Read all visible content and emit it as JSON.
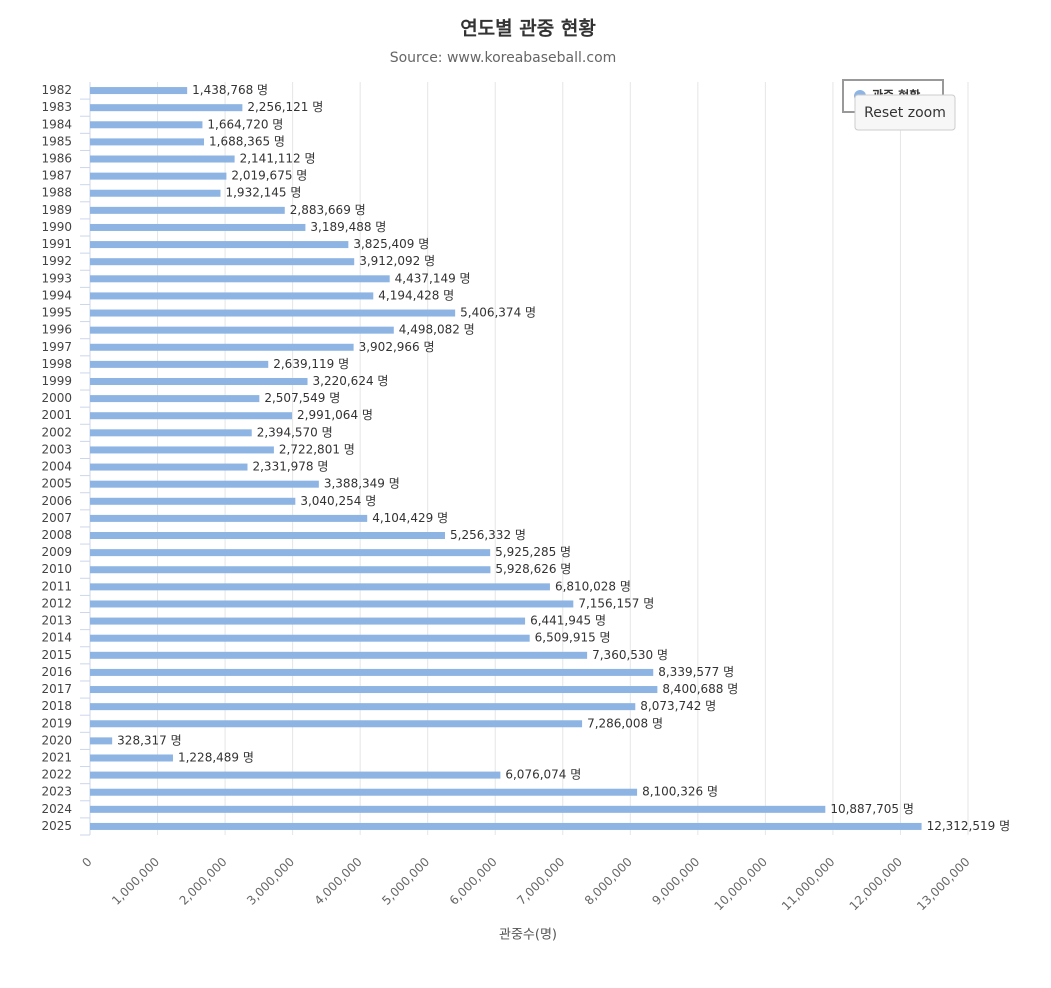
{
  "chart_data": {
    "type": "bar",
    "orientation": "horizontal",
    "title": "연도별 관중 현황",
    "subtitle": "Source: www.koreabaseball.com",
    "x_label": "관중수(명)",
    "categories": [
      "1982",
      "1983",
      "1984",
      "1985",
      "1986",
      "1987",
      "1988",
      "1989",
      "1990",
      "1991",
      "1992",
      "1993",
      "1994",
      "1995",
      "1996",
      "1997",
      "1998",
      "1999",
      "2000",
      "2001",
      "2002",
      "2003",
      "2004",
      "2005",
      "2006",
      "2007",
      "2008",
      "2009",
      "2010",
      "2011",
      "2012",
      "2013",
      "2014",
      "2015",
      "2016",
      "2017",
      "2018",
      "2019",
      "2020",
      "2021",
      "2022",
      "2023",
      "2024",
      "2025"
    ],
    "series": [
      {
        "name": "관중 현황",
        "color": "#8db4e2",
        "values": [
          1438768,
          2256121,
          1664720,
          1688365,
          2141112,
          2019675,
          1932145,
          2883669,
          3189488,
          3825409,
          3912092,
          4437149,
          4194428,
          5406374,
          4498082,
          3902966,
          2639119,
          3220624,
          2507549,
          2991064,
          2394570,
          2722801,
          2331978,
          3388349,
          3040254,
          4104429,
          5256332,
          5925285,
          5928626,
          6810028,
          7156157,
          6441945,
          6509915,
          7360530,
          8339577,
          8400688,
          8073742,
          7286008,
          328317,
          1228489,
          6076074,
          8100326,
          10887705,
          12312519
        ],
        "value_labels": [
          "1,438,768 명",
          "2,256,121 명",
          "1,664,720 명",
          "1,688,365 명",
          "2,141,112 명",
          "2,019,675 명",
          "1,932,145 명",
          "2,883,669 명",
          "3,189,488 명",
          "3,825,409 명",
          "3,912,092 명",
          "4,437,149 명",
          "4,194,428 명",
          "5,406,374 명",
          "4,498,082 명",
          "3,902,966 명",
          "2,639,119 명",
          "3,220,624 명",
          "2,507,549 명",
          "2,991,064 명",
          "2,394,570 명",
          "2,722,801 명",
          "2,331,978 명",
          "3,388,349 명",
          "3,040,254 명",
          "4,104,429 명",
          "5,256,332 명",
          "5,925,285 명",
          "5,928,626 명",
          "6,810,028 명",
          "7,156,157 명",
          "6,441,945 명",
          "6,509,915 명",
          "7,360,530 명",
          "8,339,577 명",
          "8,400,688 명",
          "8,073,742 명",
          "7,286,008 명",
          "328,317 명",
          "1,228,489 명",
          "6,076,074 명",
          "8,100,326 명",
          "10,887,705 명",
          "12,312,519 명"
        ]
      }
    ],
    "xlim": [
      0,
      13000000
    ],
    "xticks": [
      0,
      {
        "value": 1000000,
        "label": "1,000,000"
      },
      {
        "value": 2000000,
        "label": "2,000,000"
      },
      {
        "value": 3000000,
        "label": "3,000,000"
      },
      {
        "value": 4000000,
        "label": "4,000,000"
      },
      {
        "value": 5000000,
        "label": "5,000,000"
      },
      {
        "value": 6000000,
        "label": "6,000,000"
      },
      {
        "value": 7000000,
        "label": "7,000,000"
      },
      {
        "value": 8000000,
        "label": "8,000,000"
      },
      {
        "value": 9000000,
        "label": "9,000,000"
      },
      {
        "value": 10000000,
        "label": "10,000,000"
      },
      {
        "value": 11000000,
        "label": "11,000,000"
      },
      {
        "value": 12000000,
        "label": "12,000,000"
      },
      {
        "value": 13000000,
        "label": "13,000,000"
      }
    ],
    "grid": true,
    "legend": "top-right"
  },
  "reset_zoom_button": "Reset zoom"
}
